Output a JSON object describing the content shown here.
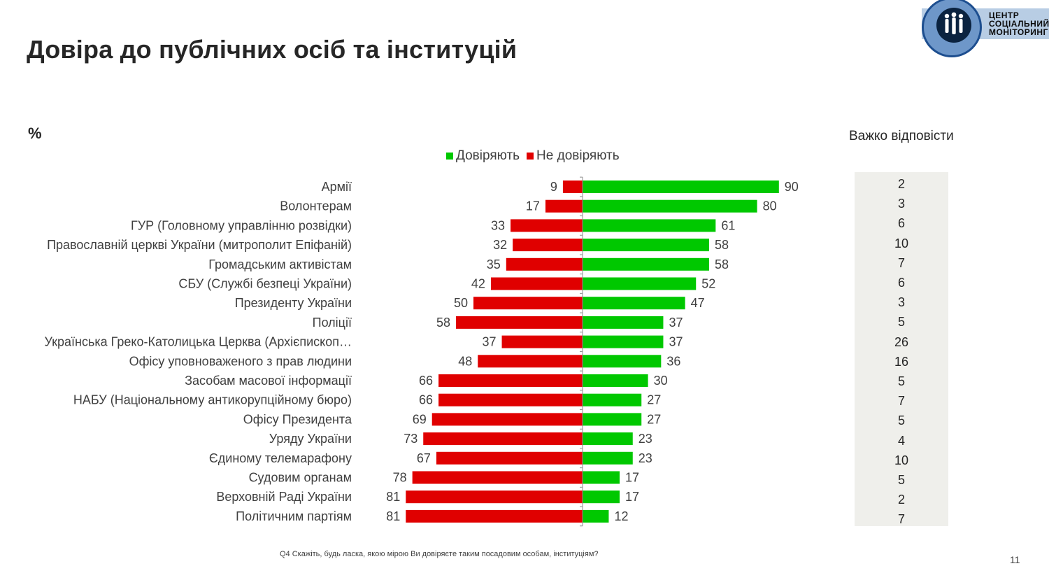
{
  "title": "Довіра до публічних осіб та інституцій",
  "unit_label": "%",
  "hard_to_say_header": "Важко відповісти",
  "logo": {
    "line1": "ЦЕНТР",
    "line2": "СОЦІАЛЬНИЙ",
    "line3": "МОНІТОРИНГ"
  },
  "footnote": "Q4 Скажіть, будь ласка, якою мірою Ви довіряєте таким посадовим особам, інституціям?",
  "page_number": "11",
  "colors": {
    "trust": "#00c800",
    "distrust": "#e00000",
    "panel": "#efefeb",
    "axis": "#8c8c8c"
  },
  "chart_data": {
    "type": "bar",
    "orientation": "horizontal-diverging",
    "legend": [
      {
        "name": "Довіряють",
        "color": "#00c800"
      },
      {
        "name": "Не довіряють",
        "color": "#e00000"
      }
    ],
    "categories": [
      "Армії",
      "Волонтерам",
      "ГУР (Головному управлінню розвідки)",
      "Православній церкві України (митрополит Епіфаній)",
      "Громадським активістам",
      "СБУ (Службі безпеці України)",
      "Президенту України",
      "Поліції",
      "Українська Греко-Католицька Церква (Архієпископ…",
      "Офісу уповноваженого з прав людини",
      "Засобам масової інформації",
      "НАБУ (Національному антикорупційному бюро)",
      "Офісу Президента",
      "Уряду України",
      "Єдиному телемарафону",
      "Судовим органам",
      "Верховній Раді України",
      "Політичним партіям"
    ],
    "series": [
      {
        "name": "Довіряють",
        "values": [
          90,
          80,
          61,
          58,
          58,
          52,
          47,
          37,
          37,
          36,
          30,
          27,
          27,
          23,
          23,
          17,
          17,
          12
        ]
      },
      {
        "name": "Не довіряють",
        "values": [
          9,
          17,
          33,
          32,
          35,
          42,
          50,
          58,
          37,
          48,
          66,
          66,
          69,
          73,
          67,
          78,
          81,
          81
        ]
      }
    ],
    "hard_to_say": [
      "2",
      "3",
      "6",
      "10",
      "7",
      "6",
      "3",
      "5",
      "26",
      "16",
      "5",
      "7",
      "5",
      "4",
      "10",
      "5",
      "2",
      "7"
    ],
    "title": "Довіра до публічних осіб та інституцій",
    "xlim": [
      -100,
      100
    ]
  }
}
